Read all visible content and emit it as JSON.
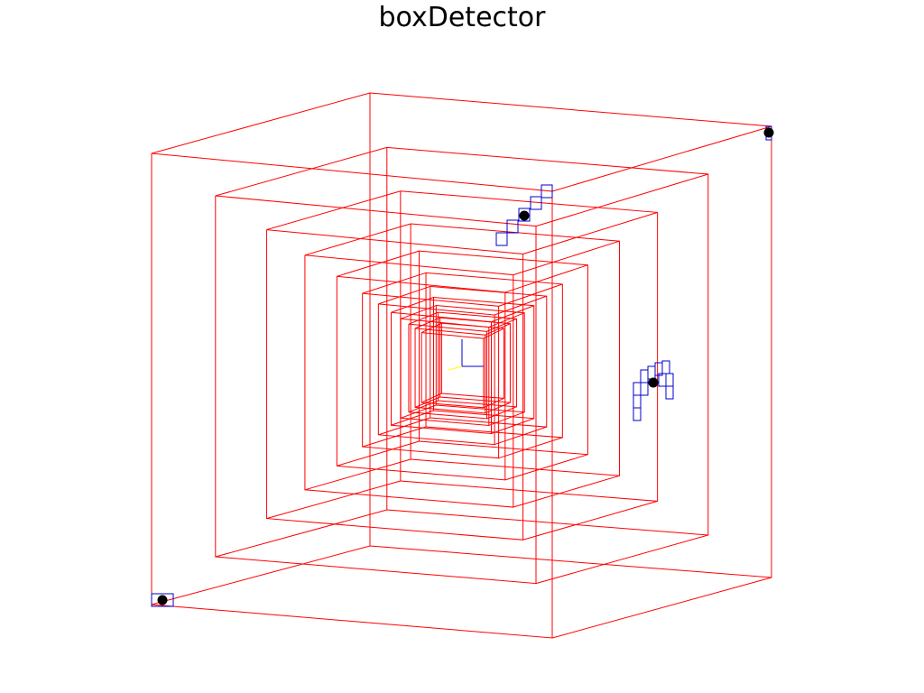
{
  "title": "boxDetector",
  "colors": {
    "background": "#ffffff",
    "box_edges": "#ff0000",
    "detector_cells": "#0000cc",
    "hit_points": "#000000",
    "axis_x": "#ffff00",
    "axis_y": "#0000cc"
  }
}
